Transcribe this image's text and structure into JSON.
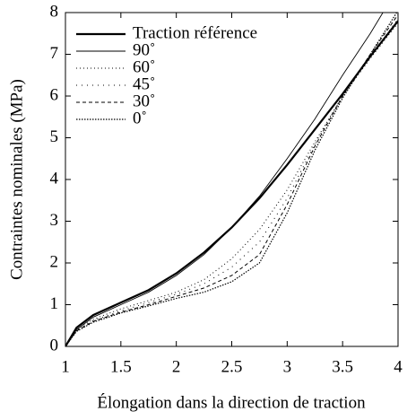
{
  "chart_data": {
    "type": "line",
    "xlabel": "Élongation dans la direction de traction",
    "ylabel": "Contraintes nominales (MPa)",
    "x": [
      1,
      1.1,
      1.25,
      1.5,
      1.75,
      2,
      2.25,
      2.5,
      2.75,
      3,
      3.25,
      3.5,
      3.75,
      4
    ],
    "series": [
      {
        "name": "Traction référence",
        "color": "#000",
        "width": 2.2,
        "dash": "none",
        "values": [
          0,
          0.45,
          0.75,
          1.05,
          1.35,
          1.75,
          2.25,
          2.85,
          3.55,
          4.35,
          5.2,
          6.05,
          6.95,
          7.8
        ]
      },
      {
        "name": "90˚",
        "color": "#000",
        "width": 0.9,
        "dash": "none",
        "values": [
          0,
          0.4,
          0.7,
          1.0,
          1.3,
          1.7,
          2.2,
          2.85,
          3.6,
          4.5,
          5.45,
          6.5,
          7.5,
          8.6
        ]
      },
      {
        "name": "60˚",
        "color": "#000",
        "width": 1,
        "dash": "1 3",
        "values": [
          0,
          0.4,
          0.65,
          0.9,
          1.1,
          1.3,
          1.6,
          2.1,
          2.8,
          3.75,
          4.9,
          6.0,
          6.9,
          7.75
        ]
      },
      {
        "name": "45˚",
        "color": "#000",
        "width": 1,
        "dash": "1 5",
        "values": [
          0,
          0.38,
          0.62,
          0.85,
          1.05,
          1.25,
          1.5,
          1.9,
          2.5,
          3.55,
          4.85,
          6.0,
          6.95,
          7.85
        ]
      },
      {
        "name": "30˚",
        "color": "#000",
        "width": 1,
        "dash": "4 3",
        "values": [
          0,
          0.37,
          0.6,
          0.82,
          1.0,
          1.2,
          1.4,
          1.7,
          2.2,
          3.4,
          4.8,
          6.0,
          7.0,
          7.95
        ]
      },
      {
        "name": "0˚",
        "color": "#000",
        "width": 1.2,
        "dash": "1.5 1.5",
        "values": [
          0,
          0.36,
          0.58,
          0.8,
          0.97,
          1.15,
          1.3,
          1.55,
          2.0,
          3.2,
          4.7,
          5.95,
          7.0,
          8.05
        ]
      }
    ],
    "xlim": [
      1,
      4
    ],
    "ylim": [
      0,
      8
    ],
    "xticks": [
      1,
      1.5,
      2,
      2.5,
      3,
      3.5,
      4
    ],
    "yticks": [
      0,
      1,
      2,
      3,
      4,
      5,
      6,
      7,
      8
    ],
    "legend": "upper left"
  }
}
